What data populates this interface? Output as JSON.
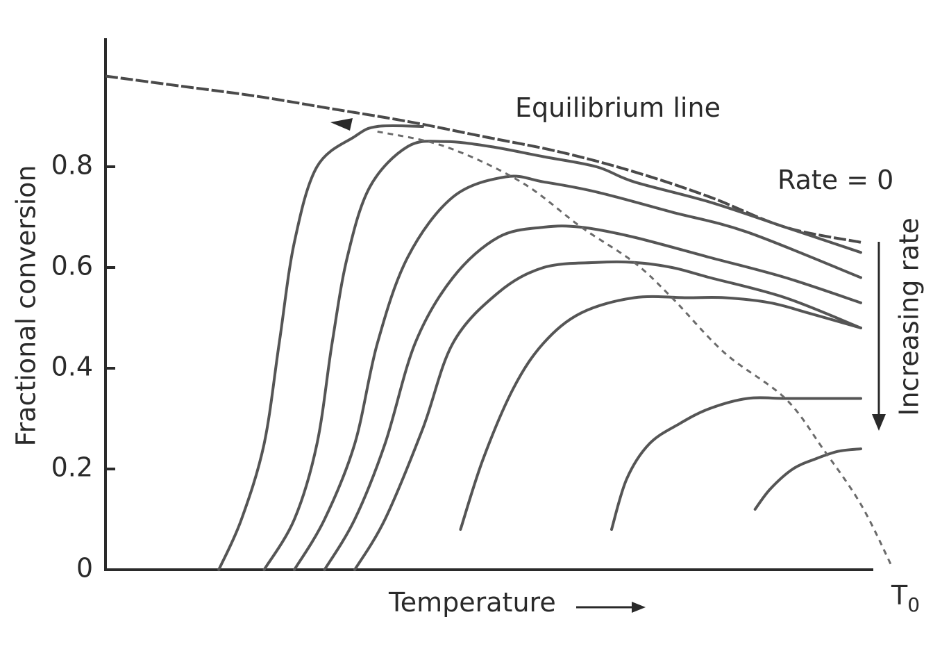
{
  "chart_data": {
    "type": "line",
    "title": "",
    "xlabel": "Temperature",
    "ylabel": "Fractional conversion",
    "ylim": [
      0,
      1
    ],
    "xlim": [
      0,
      100
    ],
    "y_ticks": [
      {
        "value": 0,
        "label": "0"
      },
      {
        "value": 0.2,
        "label": "0.2"
      },
      {
        "value": 0.4,
        "label": "0.4"
      },
      {
        "value": 0.6,
        "label": "0.6"
      },
      {
        "value": 0.8,
        "label": "0.8"
      }
    ],
    "x_end_label": "T",
    "x_end_label_sub": "0",
    "grid": false,
    "annotations": {
      "equilibrium": "Equilibrium line",
      "rate_zero": "Rate = 0",
      "increasing_rate": "Increasing rate"
    },
    "series": [
      {
        "role": "equilibrium",
        "style": "dashed",
        "x": [
          0,
          10,
          20,
          30,
          40,
          50,
          60,
          70,
          80,
          90,
          100
        ],
        "y": [
          0.98,
          0.96,
          0.94,
          0.915,
          0.89,
          0.86,
          0.83,
          0.79,
          0.74,
          0.68,
          0.65
        ]
      },
      {
        "role": "rate",
        "style": "solid",
        "x": [
          15,
          18,
          21,
          23,
          25,
          28,
          33,
          36,
          42
        ],
        "y": [
          0,
          0.1,
          0.25,
          0.45,
          0.65,
          0.8,
          0.86,
          0.88,
          0.88
        ]
      },
      {
        "role": "rate",
        "style": "solid",
        "x": [
          21,
          25,
          28,
          30,
          32,
          35,
          40,
          45,
          51,
          58,
          65,
          70,
          80,
          90,
          100
        ],
        "y": [
          0,
          0.1,
          0.25,
          0.45,
          0.62,
          0.76,
          0.84,
          0.85,
          0.84,
          0.82,
          0.8,
          0.77,
          0.73,
          0.68,
          0.63
        ]
      },
      {
        "role": "rate",
        "style": "solid",
        "x": [
          25,
          29,
          33,
          36,
          40,
          46,
          53,
          58,
          65,
          75,
          85,
          100
        ],
        "y": [
          0,
          0.1,
          0.25,
          0.45,
          0.62,
          0.74,
          0.78,
          0.77,
          0.75,
          0.71,
          0.67,
          0.58
        ]
      },
      {
        "role": "rate",
        "style": "solid",
        "x": [
          29,
          33,
          37,
          41,
          46,
          52,
          58,
          63,
          70,
          80,
          90,
          100
        ],
        "y": [
          0,
          0.1,
          0.25,
          0.45,
          0.58,
          0.66,
          0.68,
          0.68,
          0.66,
          0.62,
          0.58,
          0.53
        ]
      },
      {
        "role": "rate",
        "style": "solid",
        "x": [
          33,
          37,
          42,
          46,
          52,
          58,
          65,
          70,
          75,
          80,
          90,
          100
        ],
        "y": [
          0,
          0.1,
          0.28,
          0.45,
          0.55,
          0.6,
          0.61,
          0.61,
          0.6,
          0.58,
          0.54,
          0.48
        ]
      },
      {
        "role": "rate",
        "style": "solid",
        "x": [
          47,
          50,
          54,
          58,
          63,
          70,
          77,
          82,
          88,
          93,
          100
        ],
        "y": [
          0.08,
          0.22,
          0.36,
          0.45,
          0.51,
          0.54,
          0.54,
          0.54,
          0.53,
          0.51,
          0.48
        ]
      },
      {
        "role": "rate",
        "style": "solid",
        "x": [
          67,
          69,
          72,
          76,
          80,
          85,
          90,
          95,
          100
        ],
        "y": [
          0.08,
          0.18,
          0.25,
          0.29,
          0.32,
          0.34,
          0.34,
          0.34,
          0.34
        ]
      },
      {
        "role": "rate",
        "style": "solid",
        "x": [
          86,
          88,
          91,
          94,
          97,
          100
        ],
        "y": [
          0.12,
          0.16,
          0.2,
          0.22,
          0.235,
          0.24
        ]
      },
      {
        "role": "max-rate locus",
        "style": "dotted",
        "x": [
          36,
          45,
          55,
          63,
          70,
          75,
          82,
          90,
          95,
          100,
          104
        ],
        "y": [
          0.87,
          0.84,
          0.77,
          0.68,
          0.61,
          0.54,
          0.43,
          0.34,
          0.24,
          0.13,
          0.01
        ]
      }
    ]
  }
}
